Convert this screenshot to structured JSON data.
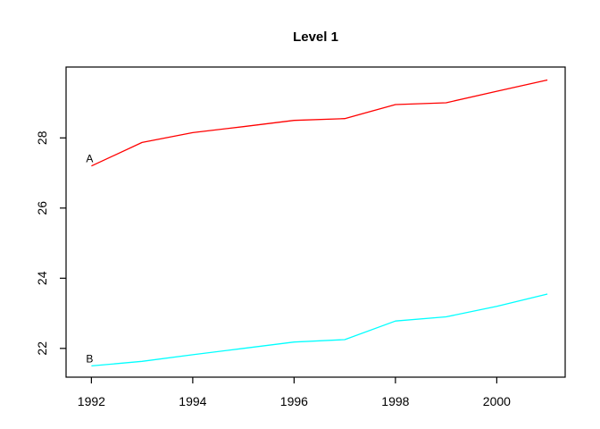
{
  "window": {
    "background_color": "#FFFFFF"
  },
  "chart_data": {
    "type": "line",
    "title": "Level 1",
    "xlabel": "",
    "ylabel": "",
    "x": [
      1992,
      1993,
      1994,
      1995,
      1996,
      1997,
      1998,
      1999,
      2000,
      2001
    ],
    "series": [
      {
        "name": "A",
        "color": "#FF0000",
        "values": [
          27.2,
          27.87,
          28.15,
          28.32,
          28.5,
          28.55,
          28.95,
          29.0,
          29.33,
          29.65
        ]
      },
      {
        "name": "B",
        "color": "#00FFFF",
        "values": [
          21.5,
          21.63,
          21.82,
          22.0,
          22.18,
          22.25,
          22.78,
          22.9,
          23.2,
          23.55
        ]
      }
    ],
    "x_ticks": [
      "1992",
      "1994",
      "1996",
      "1998",
      "2000"
    ],
    "x_tick_values": [
      1992,
      1994,
      1996,
      1998,
      2000
    ],
    "y_ticks": [
      "22",
      "24",
      "26",
      "28"
    ],
    "y_tick_values": [
      22,
      24,
      26,
      28
    ],
    "xlim": [
      1991.5,
      2001.35
    ],
    "ylim": [
      21.18,
      30.02
    ],
    "grid": false,
    "legend": "inline-point-labels",
    "axis_color": "#000000",
    "text_color": "#000000"
  }
}
